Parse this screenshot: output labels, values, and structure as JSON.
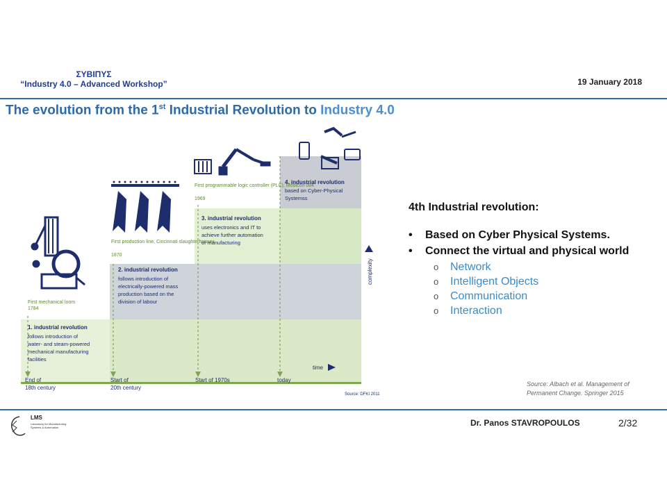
{
  "header": {
    "org": "ΣΥΒΙΠΥΣ",
    "workshop": "“Industry 4.0 – Advanced Workshop”",
    "date": "19 January 2018"
  },
  "title": {
    "part1": "The evolution from the 1",
    "sup": "st",
    "part2": " Industrial Revolution to ",
    "highlight": "Industry 4.0"
  },
  "figure": {
    "stages": [
      {
        "caption": "First mechanical loom",
        "year": "1784",
        "title": "1. industrial revolution",
        "text": [
          "follows introduction of",
          "water- and steam-powered",
          "mechanical manufacturing",
          "facilities"
        ],
        "timeline": [
          "End of",
          "18th century"
        ]
      },
      {
        "caption": "First production line, Cincinnati slaughterhouses",
        "year": "1870",
        "title": "2. industrial revolution",
        "text": [
          "follows introduction of",
          "electrically-powered mass",
          "production based on the",
          "division of labour"
        ],
        "timeline": [
          "Start of",
          "20th century"
        ]
      },
      {
        "caption": "First programmable logic controller (PLC), Modicon 084",
        "year": "1969",
        "title": "3. industrial revolution",
        "text": [
          "uses electronics and IT to",
          "achieve further automation",
          "of manufacturing"
        ],
        "timeline": [
          "Start of 1970s"
        ]
      },
      {
        "title": "4. industrial revolution",
        "text": [
          "based on Cyber-Physical",
          "Systemss"
        ],
        "timeline": [
          "today"
        ]
      }
    ],
    "complexity_label": "complexity",
    "time_label": "time",
    "source": "Source: DFKI 2011"
  },
  "bullets": {
    "heading": "4th Industrial revolution:",
    "main": [
      "Based on Cyber Physical Systems.",
      "Connect the virtual and physical world"
    ],
    "sub": [
      "Network",
      "Intelligent Objects",
      "Communication",
      "Interaction"
    ]
  },
  "citation": {
    "line1": "Source: Albach et al. Management of",
    "line2": "Permanent Change. Springer 2015"
  },
  "footer": {
    "lab_abbr": "LMS",
    "lab_name": "Laboratory for Manufacturing Systems & Automation",
    "author": "Dr. Panos STAVROPOULOS",
    "page": "2/32"
  }
}
